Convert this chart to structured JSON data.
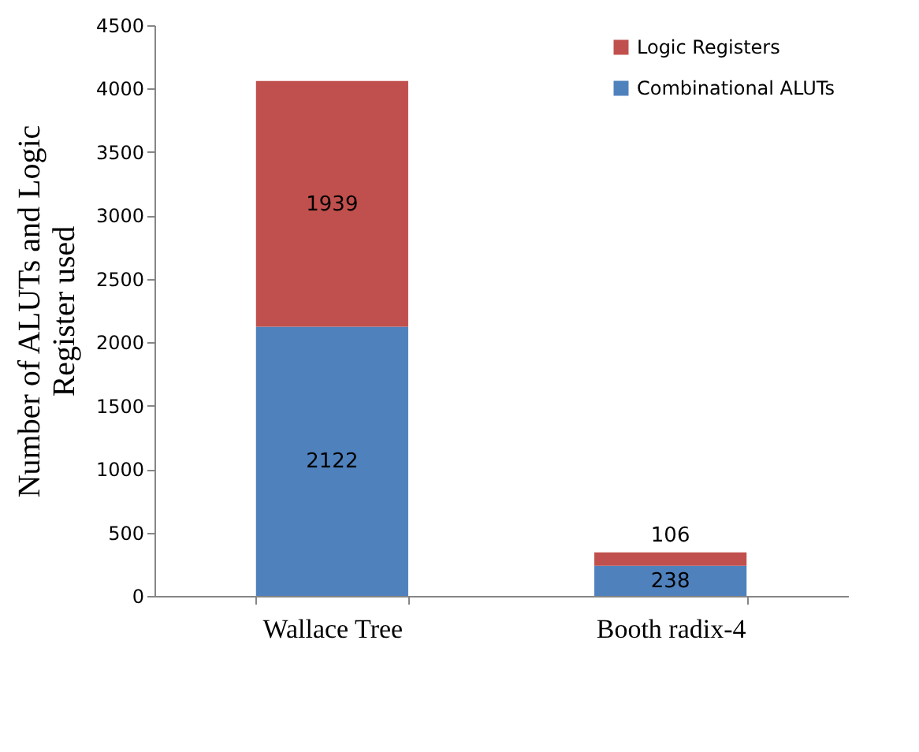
{
  "chart_data": {
    "type": "bar",
    "stacked": true,
    "ylabel": "Number of ALUTs and Logic Register used",
    "categories": [
      "Wallace Tree",
      "Booth radix-4"
    ],
    "series": [
      {
        "name": "Combinational ALUTs",
        "color": "#4f81bd",
        "values": [
          2122,
          238
        ]
      },
      {
        "name": "Logic Registers",
        "color": "#c0504d",
        "values": [
          1939,
          106
        ]
      }
    ],
    "ylim": [
      0,
      4500
    ],
    "yticks": [
      0,
      500,
      1000,
      1500,
      2000,
      2500,
      3000,
      3500,
      4000,
      4500
    ],
    "data_labels": true,
    "legend": "top right",
    "grid": false
  }
}
